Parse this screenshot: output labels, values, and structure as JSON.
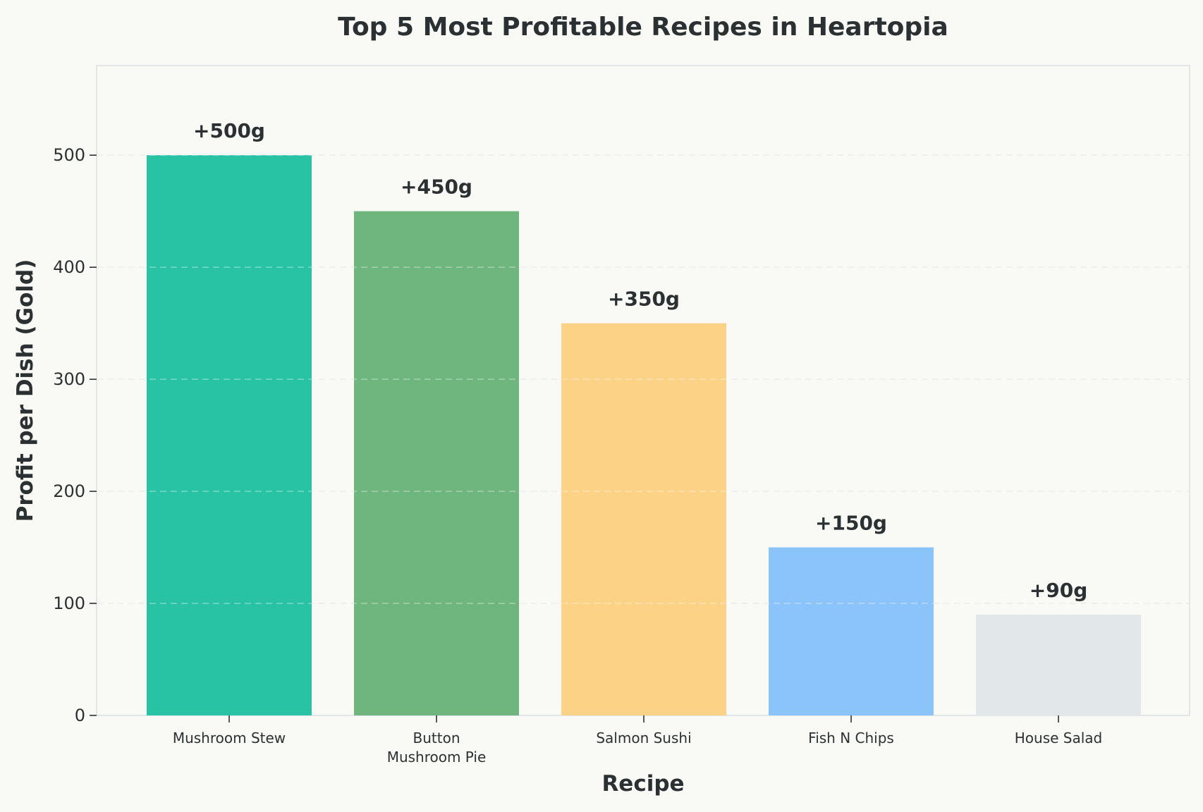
{
  "chart_data": {
    "type": "bar",
    "title": "Top 5 Most Profitable Recipes in Heartopia",
    "xlabel": "Recipe",
    "ylabel": "Profit per Dish (Gold)",
    "categories": [
      [
        "Mushroom Stew"
      ],
      [
        "Button",
        "Mushroom Pie"
      ],
      [
        "Salmon Sushi"
      ],
      [
        "Fish N Chips"
      ],
      [
        "House Salad"
      ]
    ],
    "values": [
      500,
      450,
      350,
      150,
      90
    ],
    "value_labels": [
      "+500g",
      "+450g",
      "+350g",
      "+150g",
      "+90g"
    ],
    "colors": [
      "#27c3a4",
      "#6fb57e",
      "#fcd286",
      "#8bc3fb",
      "#e2e7ea"
    ],
    "ylim": [
      0,
      580
    ],
    "yticks": [
      0,
      100,
      200,
      300,
      400,
      500
    ],
    "grid": true,
    "legend": "none"
  },
  "style": {
    "background": "#f9f9f6",
    "text_color": "#2b3133",
    "axis_color": "#dde1e5",
    "grid_color": "#e6e6e3"
  }
}
